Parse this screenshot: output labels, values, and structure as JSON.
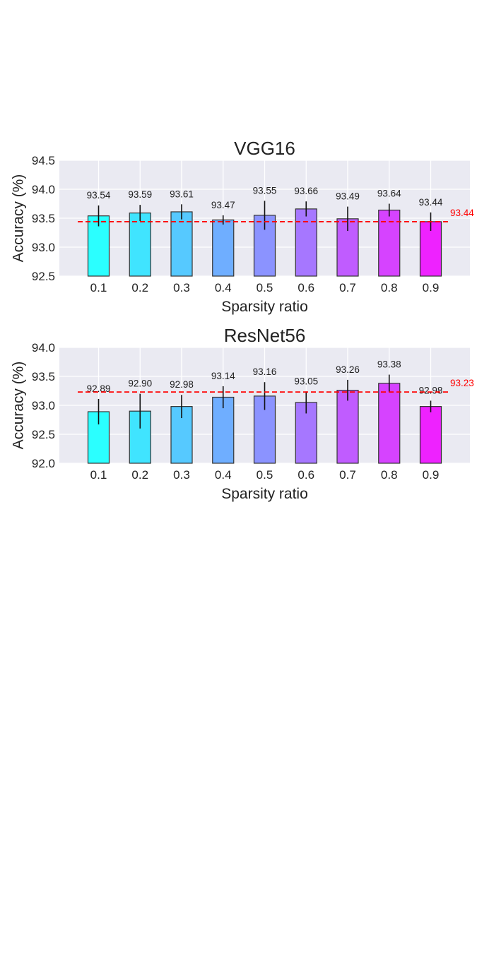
{
  "chart_data": [
    {
      "type": "bar",
      "title": "VGG16",
      "xlabel": "Sparsity ratio",
      "ylabel": "Accuracy (%)",
      "categories": [
        "0.1",
        "0.2",
        "0.3",
        "0.4",
        "0.5",
        "0.6",
        "0.7",
        "0.8",
        "0.9"
      ],
      "values": [
        93.54,
        93.59,
        93.61,
        93.47,
        93.55,
        93.66,
        93.49,
        93.64,
        93.44
      ],
      "value_labels": [
        "93.54",
        "93.59",
        "93.61",
        "93.47",
        "93.55",
        "93.66",
        "93.49",
        "93.64",
        "93.44"
      ],
      "errors": [
        0.18,
        0.14,
        0.13,
        0.08,
        0.25,
        0.13,
        0.21,
        0.11,
        0.16
      ],
      "ylim": [
        92.5,
        94.5
      ],
      "yticks": [
        "92.5",
        "93.0",
        "93.5",
        "94.0",
        "94.5"
      ],
      "ytick_values": [
        92.5,
        93.0,
        93.5,
        94.0,
        94.5
      ],
      "baseline": {
        "value": 93.44,
        "label": "93.44",
        "color": "#ff0000",
        "style": "dashed"
      },
      "grid": true,
      "background": "#eaeaf2",
      "colors": [
        "#2bffff",
        "#40e4ff",
        "#56c9ff",
        "#6faeff",
        "#8b93ff",
        "#a677ff",
        "#c05cff",
        "#d643ff",
        "#ee22ff"
      ]
    },
    {
      "type": "bar",
      "title": "ResNet56",
      "xlabel": "Sparsity ratio",
      "ylabel": "Accuracy (%)",
      "categories": [
        "0.1",
        "0.2",
        "0.3",
        "0.4",
        "0.5",
        "0.6",
        "0.7",
        "0.8",
        "0.9"
      ],
      "values": [
        92.89,
        92.9,
        92.98,
        93.14,
        93.16,
        93.05,
        93.26,
        93.38,
        92.98
      ],
      "value_labels": [
        "92.89",
        "92.90",
        "92.98",
        "93.14",
        "93.16",
        "93.05",
        "93.26",
        "93.38",
        "92.98"
      ],
      "errors": [
        0.22,
        0.3,
        0.2,
        0.19,
        0.24,
        0.19,
        0.18,
        0.15,
        0.1
      ],
      "ylim": [
        92.0,
        94.0
      ],
      "yticks": [
        "92.0",
        "92.5",
        "93.0",
        "93.5",
        "94.0"
      ],
      "ytick_values": [
        92.0,
        92.5,
        93.0,
        93.5,
        94.0
      ],
      "baseline": {
        "value": 93.23,
        "label": "93.23",
        "color": "#ff0000",
        "style": "dashed"
      },
      "grid": true,
      "background": "#eaeaf2",
      "colors": [
        "#2bffff",
        "#40e4ff",
        "#56c9ff",
        "#6faeff",
        "#8b93ff",
        "#a677ff",
        "#c05cff",
        "#d643ff",
        "#ee22ff"
      ]
    }
  ]
}
